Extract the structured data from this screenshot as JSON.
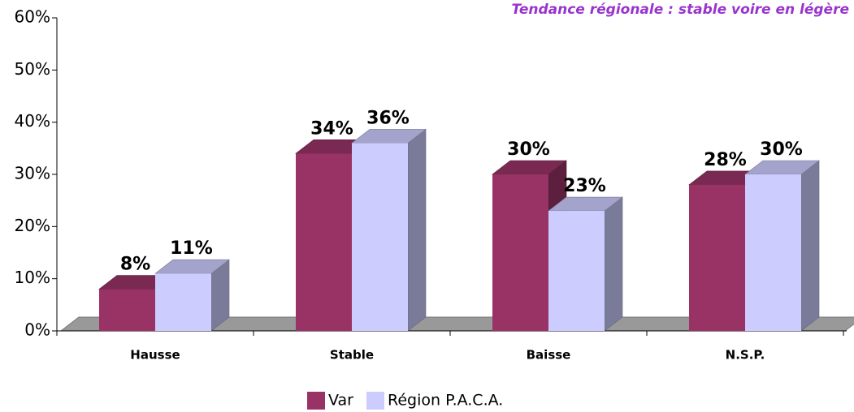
{
  "chart_data": {
    "type": "bar3d",
    "title": "Tendance régionale : stable voire en légère",
    "categories": [
      "Hausse",
      "Stable",
      "Baisse",
      "N.S.P."
    ],
    "series": [
      {
        "name": "Var",
        "color": "#993366",
        "values": [
          8,
          34,
          30,
          28
        ],
        "value_labels": [
          "8%",
          "34%",
          "30%",
          "28%"
        ]
      },
      {
        "name": "Région P.A.C.A.",
        "color": "#ccccff",
        "values": [
          11,
          36,
          23,
          30
        ],
        "value_labels": [
          "11%",
          "36%",
          "23%",
          "30%"
        ]
      }
    ],
    "ylim": [
      0,
      60
    ],
    "yticks": [
      {
        "value": 0,
        "label": "0%"
      },
      {
        "value": 10,
        "label": "10%"
      },
      {
        "value": 20,
        "label": "20%"
      },
      {
        "value": 30,
        "label": "30%"
      },
      {
        "value": 40,
        "label": "40%"
      },
      {
        "value": 50,
        "label": "50%"
      },
      {
        "value": 60,
        "label": "60%"
      }
    ],
    "legend": "bottom"
  }
}
